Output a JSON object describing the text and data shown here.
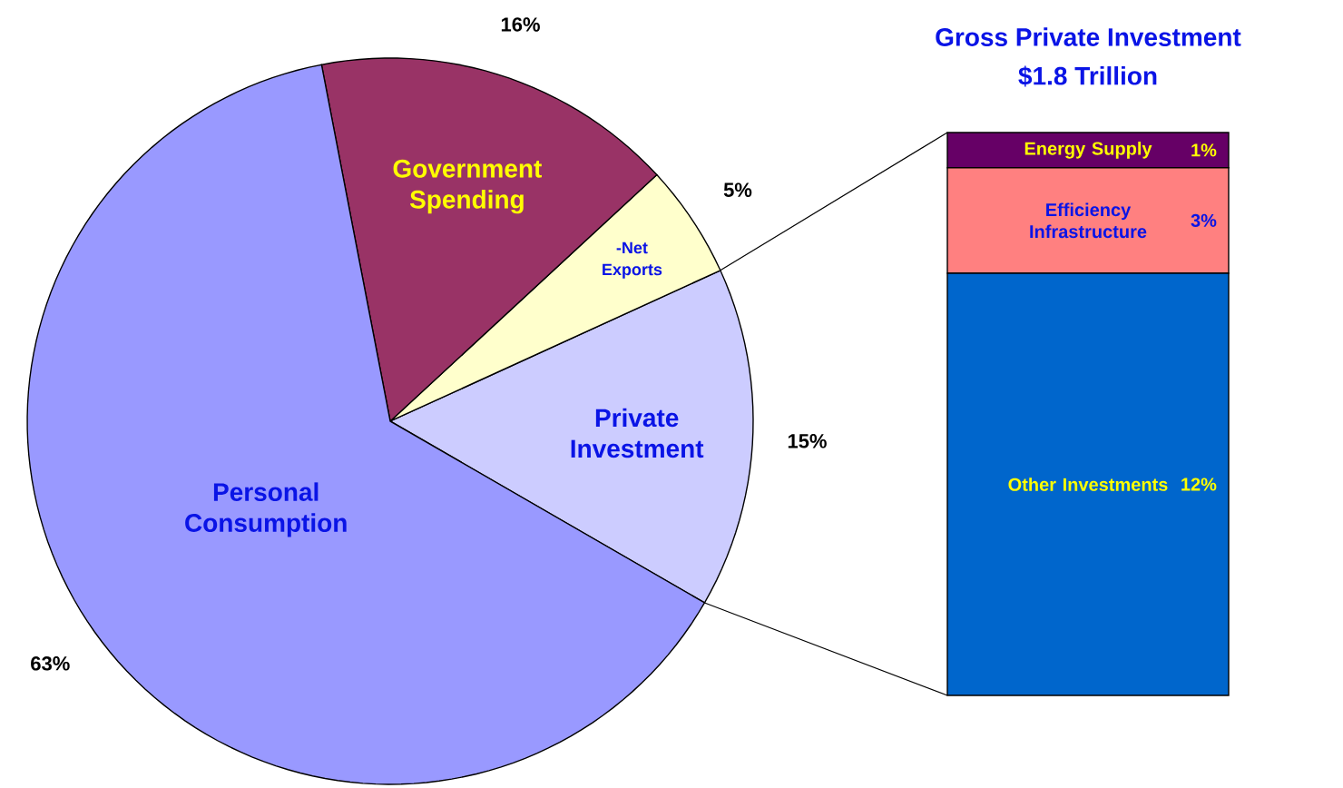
{
  "chart_data": [
    {
      "type": "pie",
      "categories": [
        "Private Investment",
        "-Net Exports",
        "Government Spending",
        "Personal Consumption"
      ],
      "values": [
        15,
        5,
        16,
        63
      ],
      "colors": [
        "#ccccff",
        "#ffffcc",
        "#993366",
        "#9999ff"
      ],
      "value_labels": [
        "15%",
        "5%",
        "16%",
        "63%"
      ]
    },
    {
      "type": "bar",
      "stacked": true,
      "title": "Gross Private Investment",
      "subtitle": "$1.8 Trillion",
      "categories": [
        null
      ],
      "tick_labels": false,
      "series": [
        {
          "name": "Other Investments",
          "color": "#0066cc",
          "values": [
            12
          ],
          "value_labels": [
            "12%"
          ]
        },
        {
          "name": "Efficiency Infrastructure",
          "color": "#ff8080",
          "values": [
            3
          ],
          "value_labels": [
            "3%"
          ]
        },
        {
          "name": "Energy Supply",
          "color": "#660066",
          "values": [
            1
          ],
          "value_labels": [
            "1%"
          ]
        }
      ]
    }
  ]
}
